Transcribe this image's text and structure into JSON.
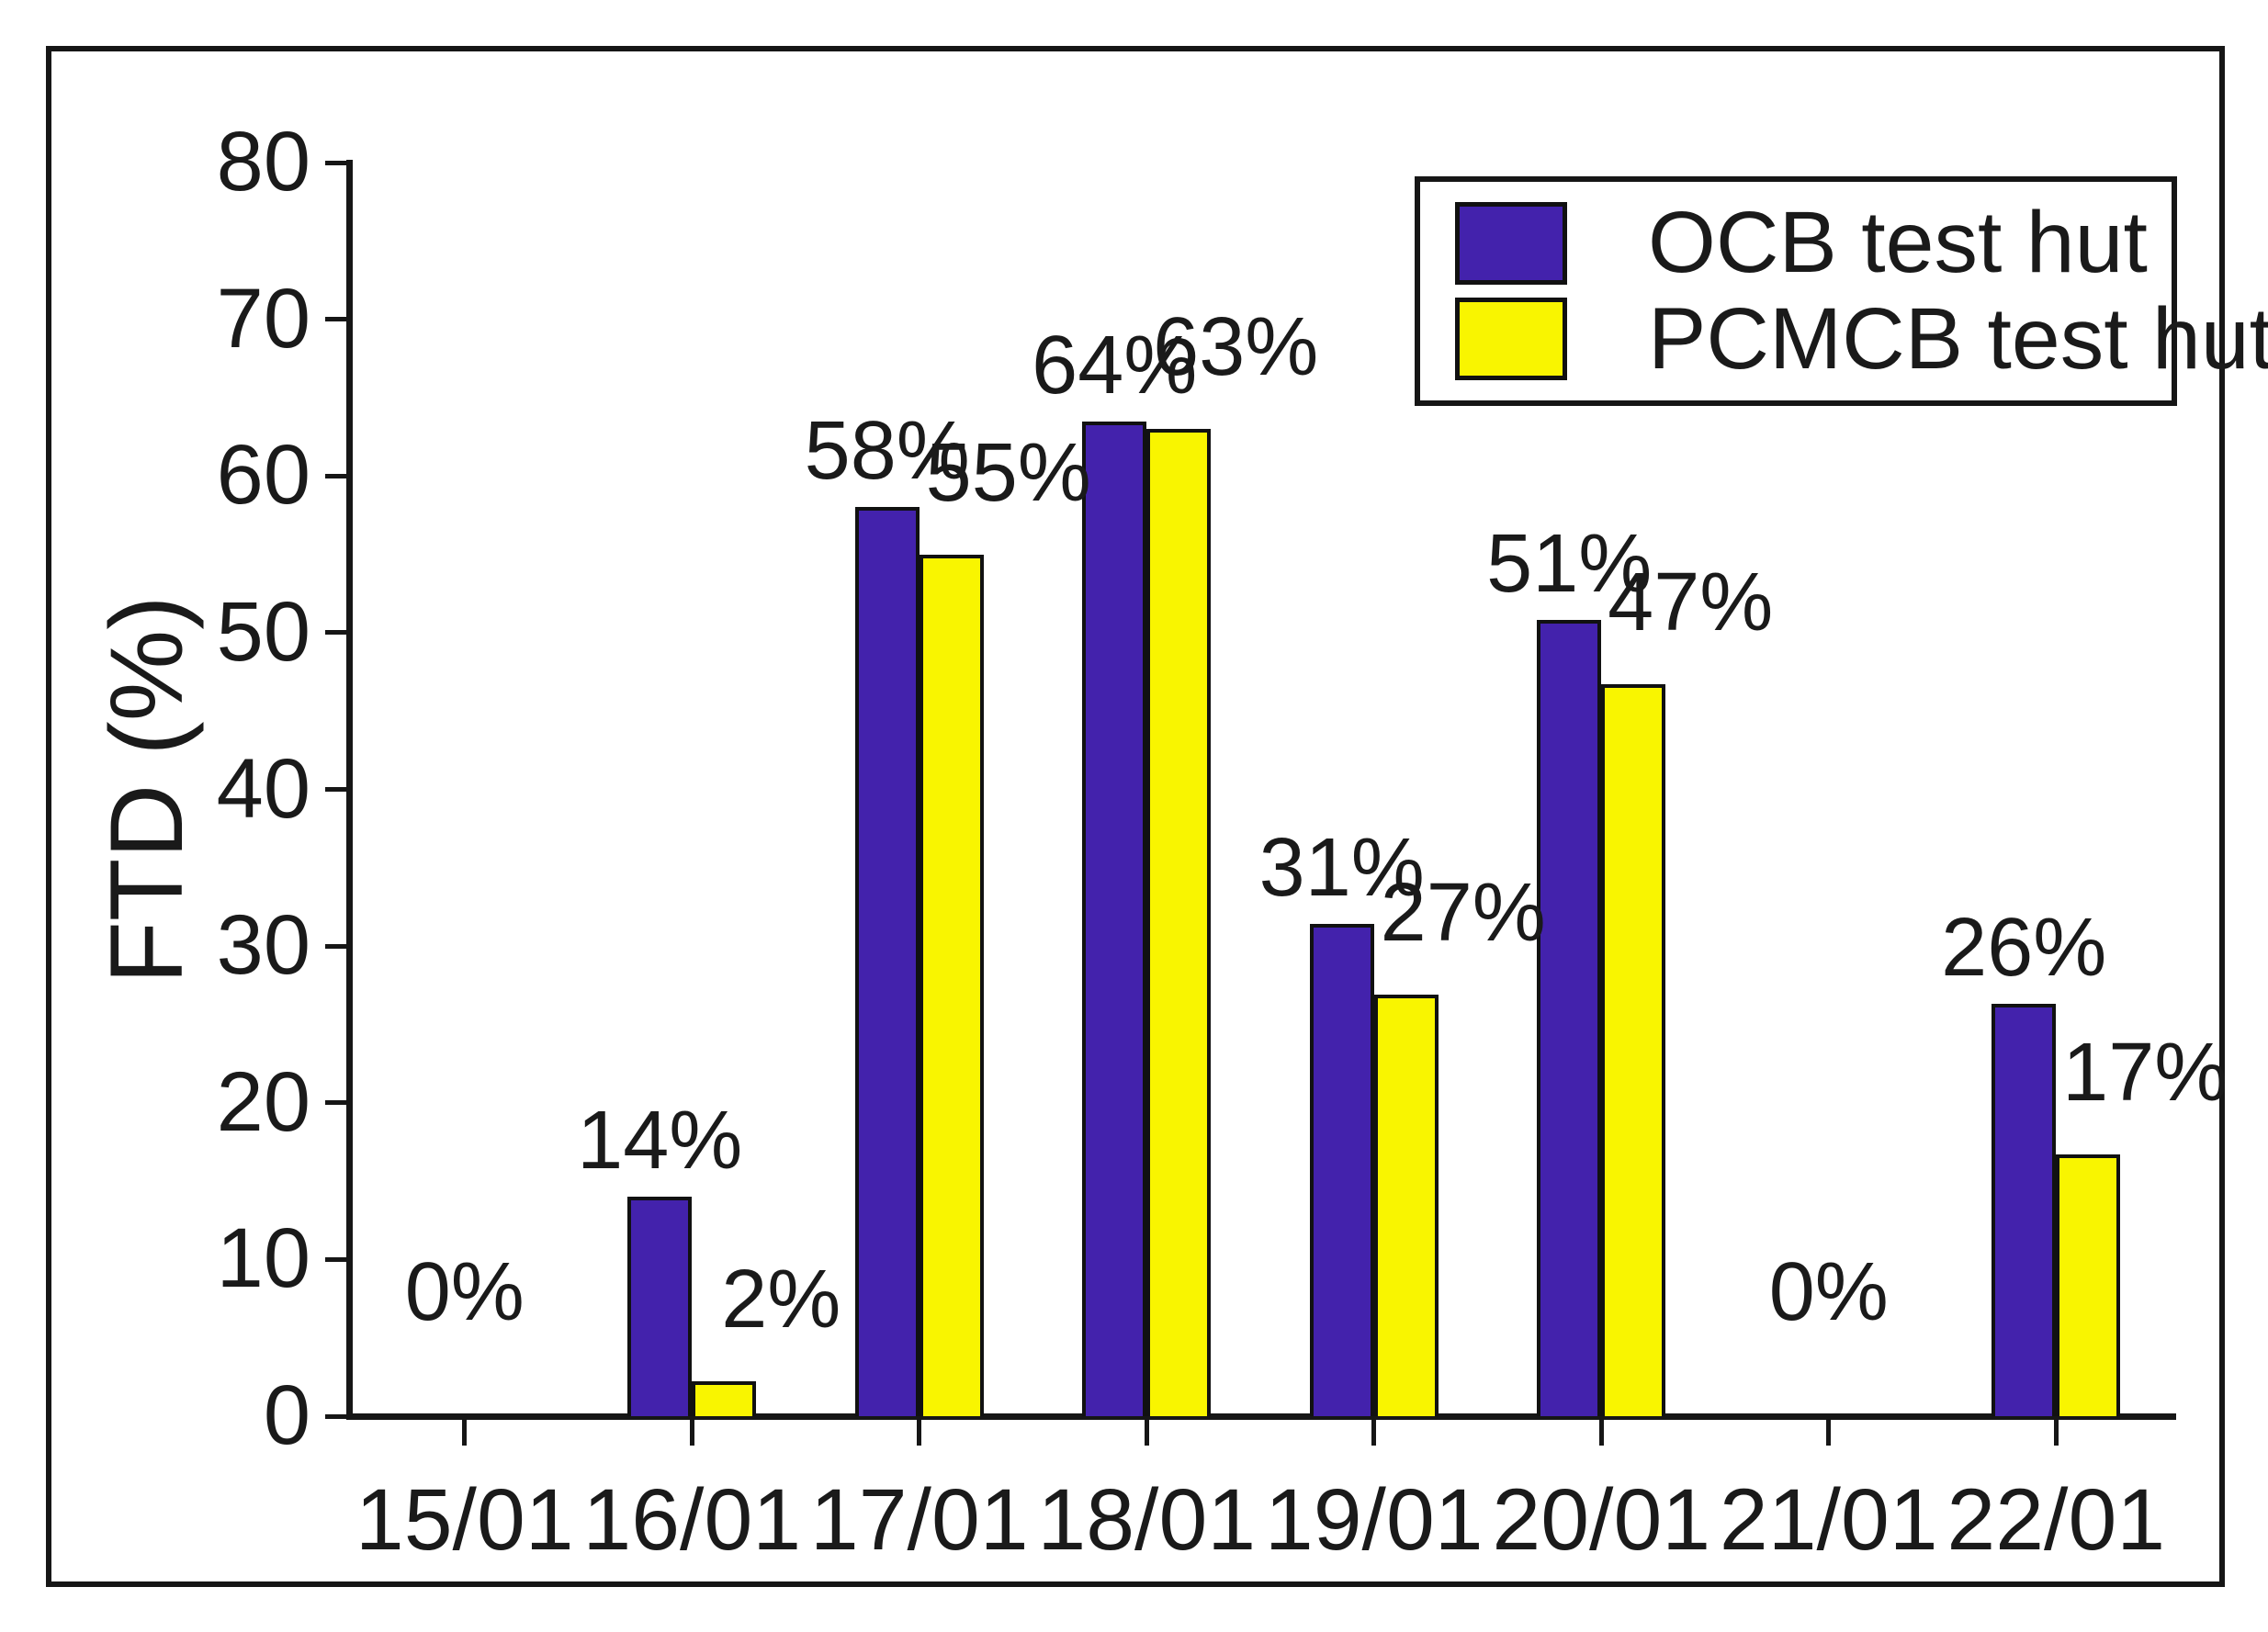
{
  "figure": {
    "y_axis_title": "FTD (%)"
  },
  "legend": {
    "items": [
      {
        "label": "OCB test hut",
        "color": "#4322AC"
      },
      {
        "label": "PCMCB test hut",
        "color": "#F9F500"
      }
    ]
  },
  "chart_data": {
    "type": "bar",
    "title": "",
    "xlabel": "",
    "ylabel": "FTD (%)",
    "categories": [
      "15/01",
      "16/01",
      "17/01",
      "18/01",
      "19/01",
      "20/01",
      "21/01",
      "22/01"
    ],
    "series": [
      {
        "name": "OCB test hut",
        "color": "#4322AC",
        "values": [
          0,
          14,
          58,
          63.5,
          31.4,
          50.8,
          0,
          26.3
        ],
        "labels": [
          "0%",
          "14%",
          "58%",
          "64%",
          "31%",
          "51%",
          "0%",
          "26%"
        ]
      },
      {
        "name": "PCMCB test hut",
        "color": "#F9F500",
        "values": [
          0,
          2.2,
          55,
          63,
          26.9,
          46.7,
          0,
          16.7
        ],
        "labels": [
          "",
          "2%",
          "55%",
          "63%",
          "27%",
          "47%",
          "",
          "17%"
        ]
      }
    ],
    "ylim": [
      0,
      80
    ],
    "yticks": [
      0,
      10,
      20,
      30,
      40,
      50,
      60,
      70,
      80
    ],
    "grid": false,
    "legend_position": "top-right"
  }
}
